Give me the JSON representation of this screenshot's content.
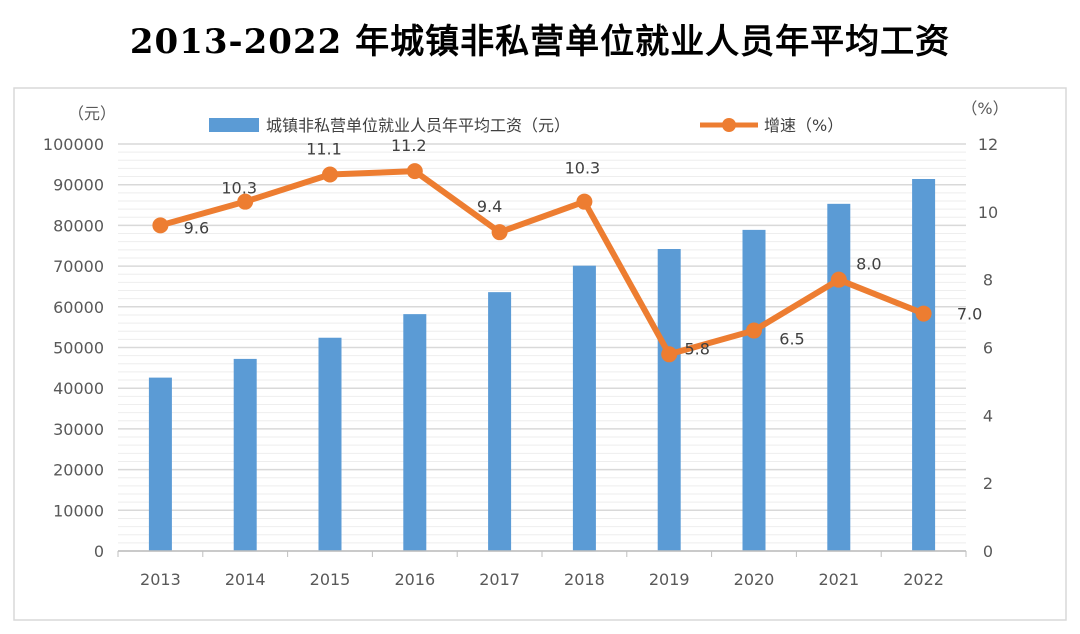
{
  "chart_data": {
    "type": "bar+line",
    "title": "2013-2022 年城镇非私营单位就业人员年平均工资",
    "categories": [
      "2013",
      "2014",
      "2015",
      "2016",
      "2017",
      "2018",
      "2019",
      "2020",
      "2021",
      "2022"
    ],
    "series": [
      {
        "name": "城镇非私营单位就业人员年平均工资（元）",
        "type": "bar",
        "axis": "left",
        "color": "#5B9BD5",
        "values": [
          42600,
          47200,
          52400,
          58200,
          63600,
          70100,
          74200,
          78900,
          85300,
          91400
        ]
      },
      {
        "name": "增速（%）",
        "type": "line",
        "axis": "right",
        "color": "#ED7D31",
        "values": [
          9.6,
          10.3,
          11.1,
          11.2,
          9.4,
          10.3,
          5.8,
          6.5,
          8.0,
          7.0
        ],
        "data_labels": [
          "9.6",
          "10.3",
          "11.1",
          "11.2",
          "9.4",
          "10.3",
          "5.8",
          "6.5",
          "8.0",
          "7.0"
        ]
      }
    ],
    "left_axis": {
      "unit": "（元）",
      "ylim": [
        0,
        100000
      ],
      "ticks": [
        "0",
        "10000",
        "20000",
        "30000",
        "40000",
        "50000",
        "60000",
        "70000",
        "80000",
        "90000",
        "100000"
      ]
    },
    "right_axis": {
      "unit": "（%）",
      "ylim": [
        0,
        12
      ],
      "ticks": [
        "0",
        "2",
        "4",
        "6",
        "8",
        "10",
        "12"
      ]
    },
    "grid": true,
    "legend": "top"
  }
}
